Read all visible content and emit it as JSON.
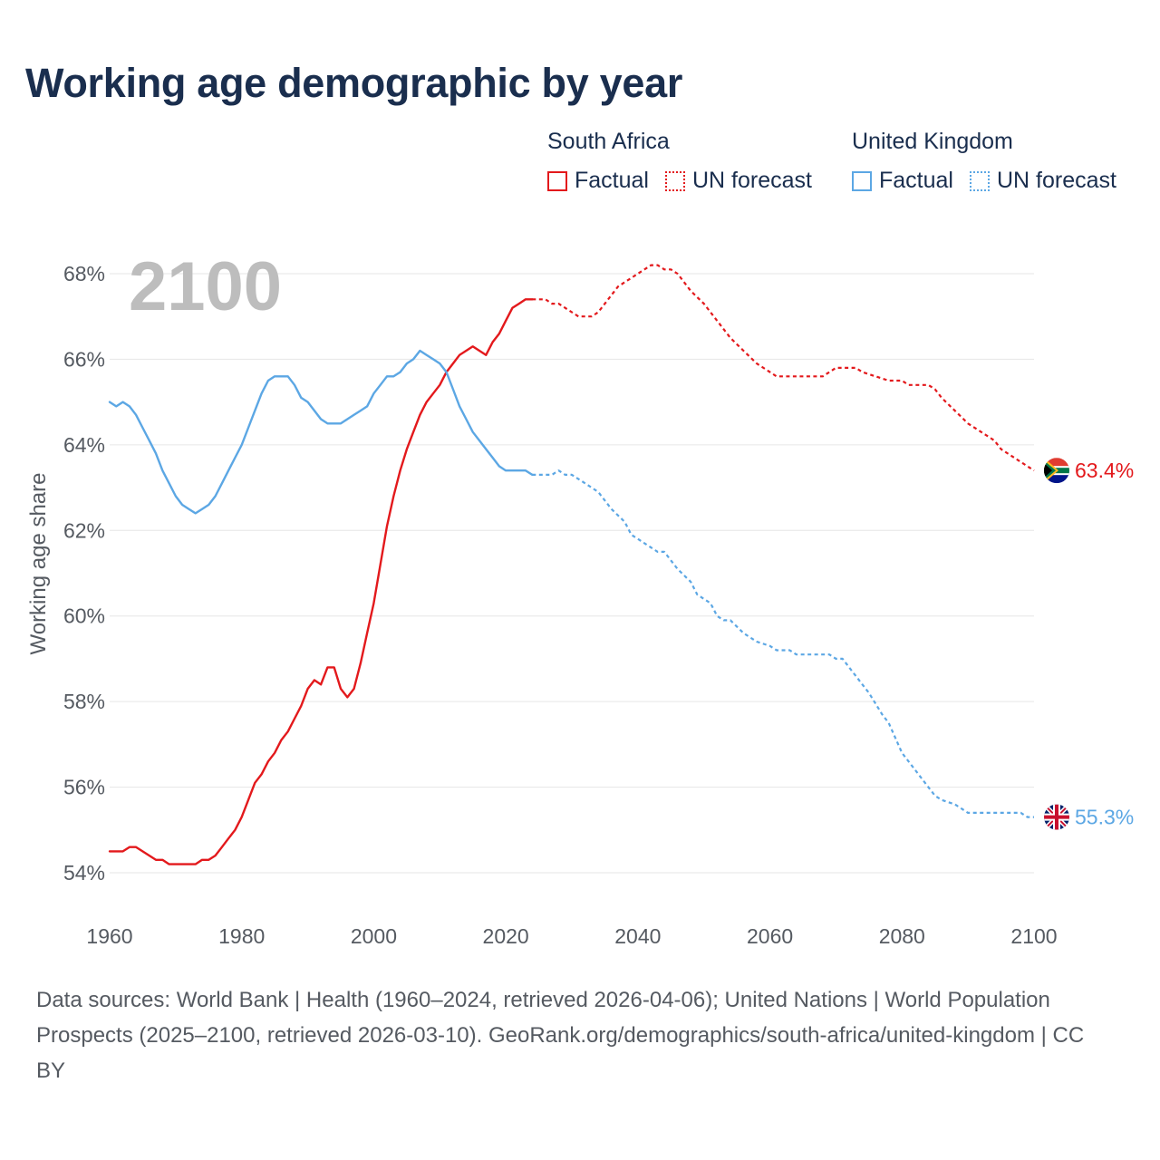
{
  "title": "Working age demographic by year",
  "legend": {
    "south_africa": {
      "title": "South Africa",
      "factual": "Factual",
      "forecast": "UN forecast"
    },
    "united_kingdom": {
      "title": "United Kingdom",
      "factual": "Factual",
      "forecast": "UN forecast"
    }
  },
  "colors": {
    "south_africa": "#e3191c",
    "united_kingdom": "#5ca7e4",
    "grid": "#e6e6e6",
    "text": "#555a61",
    "title": "#1a2e4e"
  },
  "chart_data": {
    "type": "line",
    "title": "Working age demographic by year",
    "xlabel": "",
    "ylabel": "Working age share",
    "xlim": [
      1960,
      2100
    ],
    "ylim": [
      54,
      68
    ],
    "x_ticks": [
      1960,
      1980,
      2000,
      2020,
      2040,
      2060,
      2080,
      2100
    ],
    "x_tick_labels": [
      "1960",
      "1980",
      "2000",
      "2020",
      "2040",
      "2060",
      "2080",
      "2100"
    ],
    "y_ticks": [
      54,
      56,
      58,
      60,
      62,
      64,
      66,
      68
    ],
    "y_tick_labels": [
      "54%",
      "56%",
      "58%",
      "60%",
      "62%",
      "64%",
      "66%",
      "68%"
    ],
    "current_year_label": "2100",
    "series": [
      {
        "name": "South Africa",
        "factual": [
          [
            1960,
            54.5
          ],
          [
            1962,
            54.5
          ],
          [
            1963,
            54.6
          ],
          [
            1964,
            54.6
          ],
          [
            1967,
            54.3
          ],
          [
            1968,
            54.3
          ],
          [
            1969,
            54.2
          ],
          [
            1972,
            54.2
          ],
          [
            1973,
            54.2
          ],
          [
            1974,
            54.3
          ],
          [
            1975,
            54.3
          ],
          [
            1976,
            54.4
          ],
          [
            1977,
            54.6
          ],
          [
            1978,
            54.8
          ],
          [
            1979,
            55.0
          ],
          [
            1980,
            55.3
          ],
          [
            1981,
            55.7
          ],
          [
            1982,
            56.1
          ],
          [
            1983,
            56.3
          ],
          [
            1984,
            56.6
          ],
          [
            1985,
            56.8
          ],
          [
            1986,
            57.1
          ],
          [
            1987,
            57.3
          ],
          [
            1988,
            57.6
          ],
          [
            1989,
            57.9
          ],
          [
            1990,
            58.3
          ],
          [
            1991,
            58.5
          ],
          [
            1992,
            58.4
          ],
          [
            1993,
            58.8
          ],
          [
            1994,
            58.8
          ],
          [
            1995,
            58.3
          ],
          [
            1996,
            58.1
          ],
          [
            1997,
            58.3
          ],
          [
            1998,
            58.9
          ],
          [
            1999,
            59.6
          ],
          [
            2000,
            60.3
          ],
          [
            2001,
            61.2
          ],
          [
            2002,
            62.1
          ],
          [
            2003,
            62.8
          ],
          [
            2004,
            63.4
          ],
          [
            2005,
            63.9
          ],
          [
            2006,
            64.3
          ],
          [
            2007,
            64.7
          ],
          [
            2008,
            65.0
          ],
          [
            2009,
            65.2
          ],
          [
            2010,
            65.4
          ],
          [
            2011,
            65.7
          ],
          [
            2012,
            65.9
          ],
          [
            2013,
            66.1
          ],
          [
            2014,
            66.2
          ],
          [
            2015,
            66.3
          ],
          [
            2016,
            66.2
          ],
          [
            2017,
            66.1
          ],
          [
            2018,
            66.4
          ],
          [
            2019,
            66.6
          ],
          [
            2020,
            66.9
          ],
          [
            2021,
            67.2
          ],
          [
            2022,
            67.3
          ],
          [
            2023,
            67.4
          ],
          [
            2024,
            67.4
          ]
        ],
        "forecast": [
          [
            2024,
            67.4
          ],
          [
            2026,
            67.4
          ],
          [
            2027,
            67.3
          ],
          [
            2028,
            67.3
          ],
          [
            2030,
            67.1
          ],
          [
            2031,
            67.0
          ],
          [
            2033,
            67.0
          ],
          [
            2034,
            67.1
          ],
          [
            2035,
            67.3
          ],
          [
            2036,
            67.5
          ],
          [
            2037,
            67.7
          ],
          [
            2039,
            67.9
          ],
          [
            2041,
            68.1
          ],
          [
            2042,
            68.2
          ],
          [
            2043,
            68.2
          ],
          [
            2044,
            68.1
          ],
          [
            2045,
            68.1
          ],
          [
            2046,
            68.0
          ],
          [
            2047,
            67.8
          ],
          [
            2048,
            67.6
          ],
          [
            2050,
            67.3
          ],
          [
            2052,
            66.9
          ],
          [
            2054,
            66.5
          ],
          [
            2056,
            66.2
          ],
          [
            2058,
            65.9
          ],
          [
            2060,
            65.7
          ],
          [
            2061,
            65.6
          ],
          [
            2068,
            65.6
          ],
          [
            2070,
            65.8
          ],
          [
            2073,
            65.8
          ],
          [
            2074,
            65.7
          ],
          [
            2076,
            65.6
          ],
          [
            2078,
            65.5
          ],
          [
            2080,
            65.5
          ],
          [
            2081,
            65.4
          ],
          [
            2084,
            65.4
          ],
          [
            2085,
            65.3
          ],
          [
            2086,
            65.1
          ],
          [
            2088,
            64.8
          ],
          [
            2090,
            64.5
          ],
          [
            2092,
            64.3
          ],
          [
            2094,
            64.1
          ],
          [
            2095,
            63.9
          ],
          [
            2097,
            63.7
          ],
          [
            2099,
            63.5
          ],
          [
            2100,
            63.4
          ]
        ],
        "end_value_label": "63.4%"
      },
      {
        "name": "United Kingdom",
        "factual": [
          [
            1960,
            65.0
          ],
          [
            1961,
            64.9
          ],
          [
            1962,
            65.0
          ],
          [
            1963,
            64.9
          ],
          [
            1964,
            64.7
          ],
          [
            1965,
            64.4
          ],
          [
            1966,
            64.1
          ],
          [
            1967,
            63.8
          ],
          [
            1968,
            63.4
          ],
          [
            1969,
            63.1
          ],
          [
            1970,
            62.8
          ],
          [
            1971,
            62.6
          ],
          [
            1972,
            62.5
          ],
          [
            1973,
            62.4
          ],
          [
            1974,
            62.5
          ],
          [
            1975,
            62.6
          ],
          [
            1976,
            62.8
          ],
          [
            1977,
            63.1
          ],
          [
            1978,
            63.4
          ],
          [
            1979,
            63.7
          ],
          [
            1980,
            64.0
          ],
          [
            1981,
            64.4
          ],
          [
            1982,
            64.8
          ],
          [
            1983,
            65.2
          ],
          [
            1984,
            65.5
          ],
          [
            1985,
            65.6
          ],
          [
            1987,
            65.6
          ],
          [
            1988,
            65.4
          ],
          [
            1989,
            65.1
          ],
          [
            1990,
            65.0
          ],
          [
            1991,
            64.8
          ],
          [
            1992,
            64.6
          ],
          [
            1993,
            64.5
          ],
          [
            1995,
            64.5
          ],
          [
            1996,
            64.6
          ],
          [
            1997,
            64.7
          ],
          [
            1998,
            64.8
          ],
          [
            1999,
            64.9
          ],
          [
            2000,
            65.2
          ],
          [
            2001,
            65.4
          ],
          [
            2002,
            65.6
          ],
          [
            2003,
            65.6
          ],
          [
            2004,
            65.7
          ],
          [
            2005,
            65.9
          ],
          [
            2006,
            66.0
          ],
          [
            2007,
            66.2
          ],
          [
            2008,
            66.1
          ],
          [
            2009,
            66.0
          ],
          [
            2010,
            65.9
          ],
          [
            2011,
            65.7
          ],
          [
            2012,
            65.3
          ],
          [
            2013,
            64.9
          ],
          [
            2014,
            64.6
          ],
          [
            2015,
            64.3
          ],
          [
            2016,
            64.1
          ],
          [
            2017,
            63.9
          ],
          [
            2018,
            63.7
          ],
          [
            2019,
            63.5
          ],
          [
            2020,
            63.4
          ],
          [
            2023,
            63.4
          ],
          [
            2024,
            63.3
          ]
        ],
        "forecast": [
          [
            2024,
            63.3
          ],
          [
            2027,
            63.3
          ],
          [
            2028,
            63.4
          ],
          [
            2029,
            63.3
          ],
          [
            2030,
            63.3
          ],
          [
            2032,
            63.1
          ],
          [
            2034,
            62.9
          ],
          [
            2036,
            62.5
          ],
          [
            2038,
            62.2
          ],
          [
            2039,
            61.9
          ],
          [
            2041,
            61.7
          ],
          [
            2043,
            61.5
          ],
          [
            2044,
            61.5
          ],
          [
            2046,
            61.1
          ],
          [
            2048,
            60.8
          ],
          [
            2049,
            60.5
          ],
          [
            2051,
            60.3
          ],
          [
            2052,
            60.0
          ],
          [
            2053,
            59.9
          ],
          [
            2054,
            59.9
          ],
          [
            2056,
            59.6
          ],
          [
            2058,
            59.4
          ],
          [
            2060,
            59.3
          ],
          [
            2061,
            59.2
          ],
          [
            2063,
            59.2
          ],
          [
            2064,
            59.1
          ],
          [
            2069,
            59.1
          ],
          [
            2070,
            59.0
          ],
          [
            2071,
            59.0
          ],
          [
            2072,
            58.8
          ],
          [
            2074,
            58.4
          ],
          [
            2075,
            58.2
          ],
          [
            2077,
            57.7
          ],
          [
            2078,
            57.5
          ],
          [
            2080,
            56.8
          ],
          [
            2082,
            56.4
          ],
          [
            2084,
            56.0
          ],
          [
            2085,
            55.8
          ],
          [
            2086,
            55.7
          ],
          [
            2088,
            55.6
          ],
          [
            2089,
            55.5
          ],
          [
            2090,
            55.4
          ],
          [
            2098,
            55.4
          ],
          [
            2099,
            55.3
          ],
          [
            2100,
            55.3
          ]
        ],
        "end_value_label": "55.3%"
      }
    ]
  },
  "footer": {
    "source": "Data sources: World Bank | Health (1960–2024, retrieved 2026-04-06); United Nations | World Population Prospects (2025–2100, retrieved 2026-03-10). GeoRank.org/demographics/south-africa/united-kingdom | CC BY"
  }
}
